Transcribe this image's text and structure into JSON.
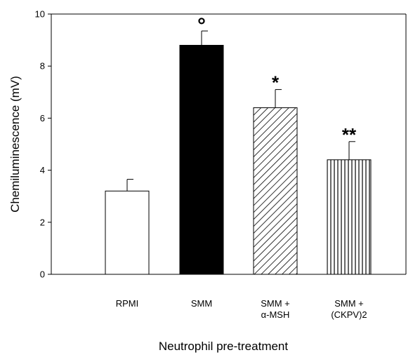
{
  "chart_data": {
    "type": "bar",
    "categories": [
      [
        "RPMI"
      ],
      [
        "SMM"
      ],
      [
        "SMM +",
        "α-MSH"
      ],
      [
        "SMM +",
        "(CKPV)2"
      ]
    ],
    "values": [
      3.2,
      8.8,
      6.4,
      4.4
    ],
    "errors": [
      0.45,
      0.55,
      0.7,
      0.7
    ],
    "annotations": [
      "",
      "°",
      "*",
      "**"
    ],
    "fills": [
      "white",
      "black",
      "diagonal-hatch",
      "vertical-hatch"
    ],
    "xlabel": "Neutrophil pre-treatment",
    "ylabel": "Chemiluminescence (mV)",
    "ylim": [
      0,
      10
    ],
    "yticks": [
      0,
      2,
      4,
      6,
      8,
      10
    ],
    "grid": false,
    "legend": "none"
  }
}
